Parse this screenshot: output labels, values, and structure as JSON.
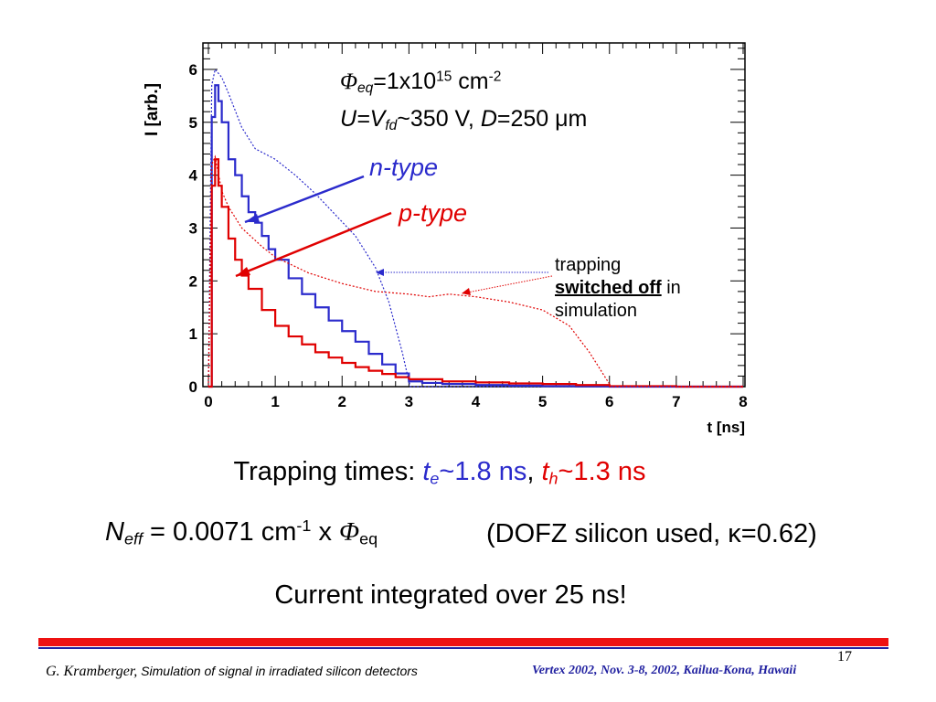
{
  "chart_data": {
    "type": "line",
    "xlabel": "t [ns]",
    "ylabel": "I [arb.]",
    "xlim": [
      0,
      8
    ],
    "ylim": [
      0,
      6.5
    ],
    "xticks": [
      "0",
      "1",
      "2",
      "3",
      "4",
      "5",
      "6",
      "7",
      "8"
    ],
    "yticks": [
      "0",
      "1",
      "2",
      "3",
      "4",
      "5",
      "6"
    ],
    "series": [
      {
        "name": "n-type",
        "style": "solid",
        "color": "#2b2bcc",
        "x": [
          0,
          0.05,
          0.1,
          0.15,
          0.2,
          0.3,
          0.4,
          0.5,
          0.6,
          0.7,
          0.8,
          0.9,
          1.0,
          1.2,
          1.4,
          1.6,
          1.8,
          2.0,
          2.2,
          2.4,
          2.6,
          2.8,
          3.0,
          3.2,
          3.5,
          4.0,
          4.5,
          5.0,
          5.5,
          6.0,
          7.0,
          8.0
        ],
        "y": [
          0,
          5.1,
          5.7,
          5.4,
          5.0,
          4.3,
          4.0,
          3.6,
          3.3,
          3.1,
          2.85,
          2.6,
          2.4,
          2.05,
          1.75,
          1.5,
          1.25,
          1.05,
          0.85,
          0.62,
          0.42,
          0.25,
          0.1,
          0.07,
          0.05,
          0.03,
          0.02,
          0.01,
          0.005,
          0,
          0,
          0
        ]
      },
      {
        "name": "p-type",
        "style": "solid",
        "color": "#e00000",
        "x": [
          0,
          0.05,
          0.1,
          0.15,
          0.2,
          0.3,
          0.4,
          0.5,
          0.6,
          0.8,
          1.0,
          1.2,
          1.4,
          1.6,
          1.8,
          2.0,
          2.2,
          2.4,
          2.6,
          2.8,
          3.0,
          3.5,
          4.0,
          4.5,
          5.0,
          5.5,
          6.0,
          7.0,
          8.0
        ],
        "y": [
          0,
          3.8,
          4.3,
          3.8,
          3.4,
          2.8,
          2.4,
          2.1,
          1.85,
          1.45,
          1.15,
          0.95,
          0.8,
          0.65,
          0.55,
          0.45,
          0.37,
          0.3,
          0.24,
          0.18,
          0.14,
          0.1,
          0.08,
          0.06,
          0.05,
          0.03,
          0.01,
          0,
          0
        ]
      },
      {
        "name": "n-type, trapping switched off",
        "style": "dotted",
        "color": "#2b2bcc",
        "x": [
          0,
          0.05,
          0.1,
          0.2,
          0.3,
          0.5,
          0.7,
          1.0,
          1.3,
          1.6,
          1.9,
          2.2,
          2.5,
          2.7,
          2.9,
          3.0,
          3.02,
          3.1,
          8.0
        ],
        "y": [
          0,
          5.7,
          6.0,
          5.85,
          5.55,
          4.9,
          4.5,
          4.3,
          4.0,
          3.65,
          3.25,
          2.85,
          2.25,
          1.6,
          0.65,
          0.1,
          0,
          0,
          0
        ]
      },
      {
        "name": "p-type, trapping switched off",
        "style": "dotted",
        "color": "#e00000",
        "x": [
          0,
          0.05,
          0.1,
          0.2,
          0.3,
          0.5,
          0.8,
          1.0,
          1.5,
          2.0,
          2.5,
          3.0,
          3.3,
          3.6,
          4.0,
          4.5,
          5.0,
          5.4,
          5.7,
          5.9,
          6.0,
          6.02,
          8.0
        ],
        "y": [
          0,
          4.2,
          4.35,
          3.7,
          3.4,
          3.0,
          2.65,
          2.45,
          2.15,
          1.95,
          1.8,
          1.75,
          1.7,
          1.75,
          1.7,
          1.6,
          1.45,
          1.15,
          0.65,
          0.25,
          0.05,
          0,
          0
        ]
      }
    ],
    "annotations": {
      "phi_prefix": "Φ",
      "phi_sub": "eq",
      "phi_eq": "=1x10",
      "phi_exp": "15",
      "phi_unit": " cm",
      "phi_unit_exp": "-2",
      "u_label": "U",
      "u_eq": "=V",
      "u_sub": "fd",
      "u_value": "~350 V, ",
      "d_label": "D",
      "d_value": "=250 μm",
      "ntype": "n-type",
      "ptype": "p-type",
      "trap_line1": "trapping",
      "trap_bold": "switched off",
      "trap_in": " in",
      "trap_line3": "simulation"
    }
  },
  "text": {
    "trapping_prefix": "Trapping times: ",
    "te_t": "t",
    "te_sub": "e",
    "te_val": "~1.8 ns",
    "comma": ", ",
    "th_t": "t",
    "th_sub": "h",
    "th_val": "~1.3 ns",
    "neff_n": "N",
    "neff_sub": "eff",
    "neff_eq": " = 0.0071 cm",
    "neff_exp": "-1",
    "neff_x": " x ",
    "neff_phi": "Φ",
    "neff_phi_sub": "eq",
    "dofz": "(DOFZ silicon used, κ=0.62)",
    "current": "Current integrated over 25 ns!"
  },
  "footer": {
    "page": "17",
    "author": "G. Kramberger,",
    "title": " Simulation of signal in irradiated silicon detectors",
    "venue": "Vertex 2002, Nov.  3-8, 2002, Kailua-Kona, Hawaii"
  },
  "colors": {
    "blue": "#2b2bcc",
    "red": "#e00000",
    "bar_red": "#ee1111",
    "bar_blue": "#2020a0"
  }
}
